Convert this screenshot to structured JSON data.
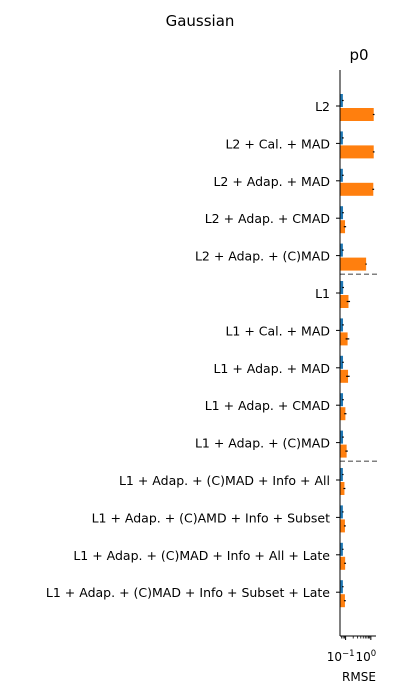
{
  "figure": {
    "suptitle": "Gaussian"
  },
  "chart_data": {
    "type": "bar",
    "orientation": "horizontal",
    "title": "p0",
    "xlabel": "RMSE",
    "ylabel": "",
    "xscale": "log",
    "xlim": [
      0.06,
      1.6
    ],
    "xticks": [
      {
        "value": 0.1,
        "label": "10^{-1}",
        "base": "10",
        "exp": "−1"
      },
      {
        "value": 1.0,
        "label": "10^{0}",
        "base": "10",
        "exp": "0"
      }
    ],
    "categories": [
      "L2",
      "L2 + Cal. + MAD",
      "L2 + Adap. + MAD",
      "L2 + Adap. + CMAD",
      "L2 + Adap. + (C)MAD",
      "L1",
      "L1 + Cal. + MAD",
      "L1 + Adap. + MAD",
      "L1 + Adap. + CMAD",
      "L1 + Adap. + (C)MAD",
      "L1 + Adap. + (C)MAD + Info + All",
      "L1 + Adap. + (C)AMD + Info + Subset",
      "L1 + Adap. + (C)MAD + Info + All + Late",
      "L1 + Adap. + (C)MAD + Info + Subset + Late"
    ],
    "series": [
      {
        "color": "#1f77b4",
        "values": [
          0.078,
          0.078,
          0.078,
          0.079,
          0.078,
          0.08,
          0.079,
          0.079,
          0.079,
          0.079,
          0.078,
          0.078,
          0.078,
          0.078
        ],
        "errors": [
          0.006,
          0.006,
          0.006,
          0.006,
          0.006,
          0.006,
          0.006,
          0.006,
          0.006,
          0.006,
          0.005,
          0.005,
          0.005,
          0.005
        ]
      },
      {
        "color": "#ff7f0e",
        "values": [
          1.3,
          1.3,
          1.25,
          0.095,
          0.65,
          0.13,
          0.12,
          0.125,
          0.098,
          0.11,
          0.09,
          0.094,
          0.096,
          0.094
        ],
        "errors": [
          0.1,
          0.1,
          0.1,
          0.01,
          0.04,
          0.02,
          0.02,
          0.02,
          0.01,
          0.012,
          0.008,
          0.008,
          0.008,
          0.008
        ]
      }
    ],
    "separators_after_index": [
      4,
      9
    ],
    "grid": false
  }
}
